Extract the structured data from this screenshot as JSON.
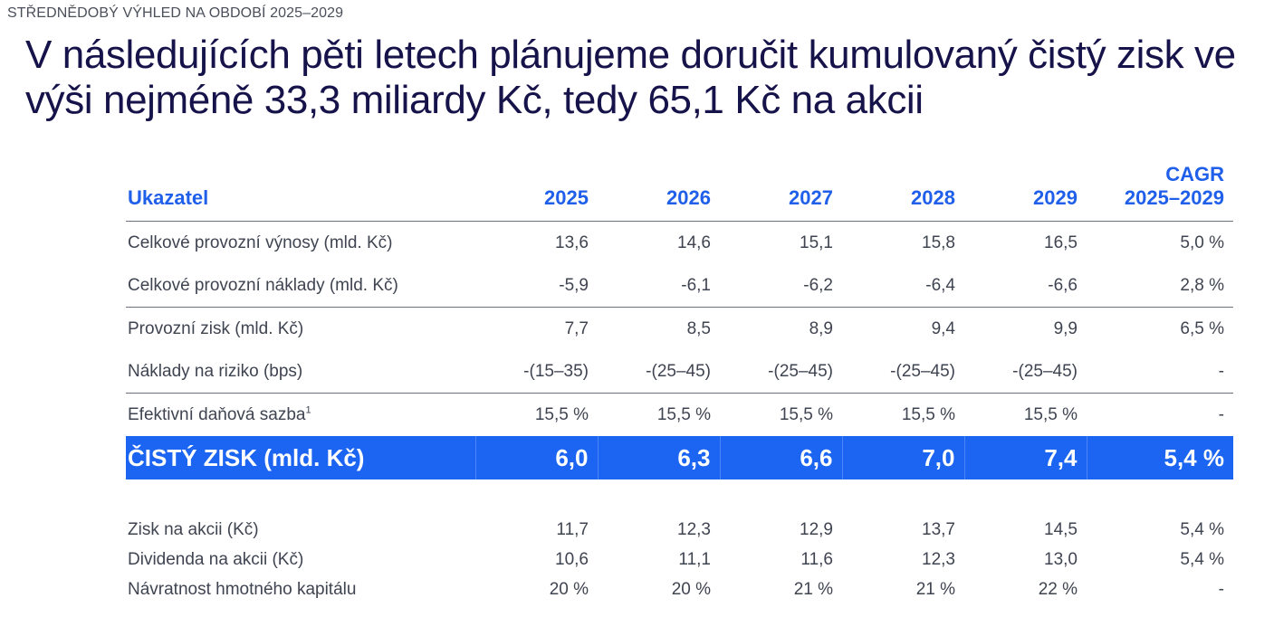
{
  "eyebrow": "STŘEDNĚDOBÝ VÝHLED NA OBDOBÍ 2025–2029",
  "title": "V následujících pěti letech plánujeme doručit kumulovaný čistý zisk ve výši nejméně 33,3 miliardy Kč, tedy 65,1 Kč na akcii",
  "table": {
    "header": {
      "label": "Ukazatel",
      "years": [
        "2025",
        "2026",
        "2027",
        "2028",
        "2029"
      ],
      "cagr_line1": "CAGR",
      "cagr_line2": "2025–2029"
    },
    "rows": [
      {
        "label": "Celkové provozní výnosy (mld. Kč)",
        "values": [
          "13,6",
          "14,6",
          "15,1",
          "15,8",
          "16,5"
        ],
        "cagr": "5,0 %"
      },
      {
        "label": "Celkové provozní náklady (mld. Kč)",
        "values": [
          "-5,9",
          "-6,1",
          "-6,2",
          "-6,4",
          "-6,6"
        ],
        "cagr": "2,8 %"
      },
      {
        "label": "Provozní zisk (mld. Kč)",
        "values": [
          "7,7",
          "8,5",
          "8,9",
          "9,4",
          "9,9"
        ],
        "cagr": "6,5 %"
      },
      {
        "label": "Náklady na riziko (bps)",
        "values": [
          "-(15–35)",
          "-(25–45)",
          "-(25–45)",
          "-(25–45)",
          "-(25–45)"
        ],
        "cagr": "-"
      },
      {
        "label": "Efektivní daňová sazba",
        "footnote": "1",
        "values": [
          "15,5 %",
          "15,5 %",
          "15,5 %",
          "15,5 %",
          "15,5 %"
        ],
        "cagr": "-"
      }
    ],
    "net_profit": {
      "label": "ČISTÝ ZISK (mld. Kč)",
      "values": [
        "6,0",
        "6,3",
        "6,6",
        "7,0",
        "7,4"
      ],
      "cagr": "5,4 %"
    },
    "per_share_rows": [
      {
        "label": "Zisk na akcii (Kč)",
        "values": [
          "11,7",
          "12,3",
          "12,9",
          "13,7",
          "14,5"
        ],
        "cagr": "5,4 %"
      },
      {
        "label": "Dividenda na akcii (Kč)",
        "values": [
          "10,6",
          "11,1",
          "11,6",
          "12,3",
          "13,0"
        ],
        "cagr": "5,4 %"
      },
      {
        "label": "Návratnost hmotného kapitálu",
        "values": [
          "20 %",
          "20 %",
          "21 %",
          "21 %",
          "22 %"
        ],
        "cagr": "-"
      }
    ]
  },
  "colors": {
    "accent": "#1c64f2",
    "title": "#16124a",
    "body_text": "#3f4451"
  }
}
